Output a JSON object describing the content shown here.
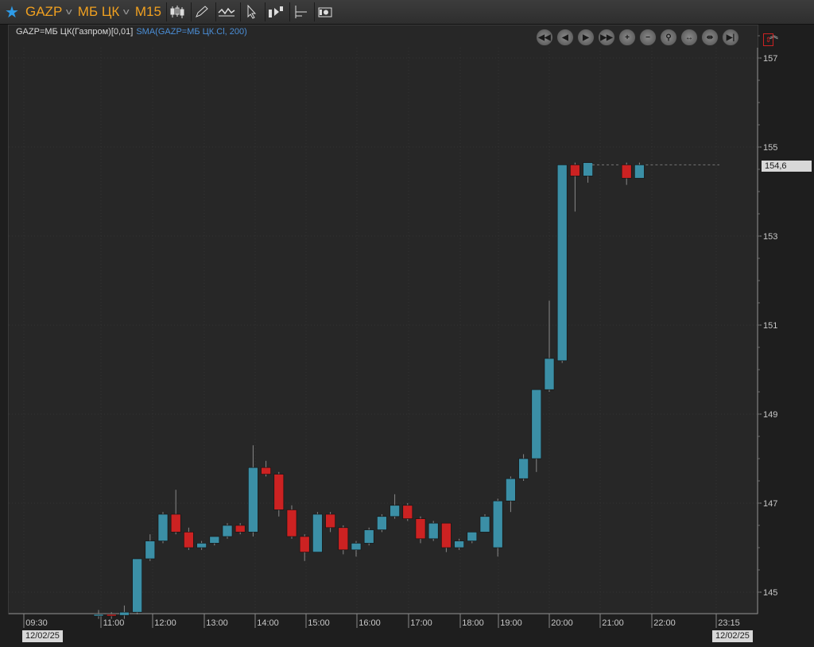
{
  "toolbar": {
    "symbol": "GAZP",
    "exchange": "МБ ЦК",
    "timeframe": "M15",
    "tools": [
      "candles-icon",
      "pencil-icon",
      "chart-style-icon",
      "cursor-icon",
      "trade-icon",
      "indicator-icon",
      "snapshot-icon"
    ]
  },
  "legend": {
    "series": "GAZP=МБ ЦК(Газпром)[0,01]",
    "sma": "SMA(GAZP=МБ ЦК.Cl, 200)"
  },
  "navigation": [
    "scroll-start-icon",
    "scroll-left-icon",
    "scroll-right-icon",
    "scroll-end-icon",
    "zoom-in-icon",
    "zoom-out-icon",
    "zoom-fit-icon",
    "expand-h-icon",
    "shrink-h-icon",
    "pause-icon"
  ],
  "dates": {
    "start": "12/02/25",
    "end": "12/02/25"
  },
  "last_price_label": "154,6",
  "colors": {
    "up": "#3b8fa6",
    "down": "#cc2222",
    "background": "#272727"
  },
  "chart_data": {
    "type": "candlestick",
    "ylim": [
      144.5,
      158
    ],
    "y_ticks": [
      157,
      155,
      153,
      151,
      149,
      147,
      145
    ],
    "x_tick_labels": [
      "09:30",
      "11:00",
      "12:00",
      "13:00",
      "14:00",
      "15:00",
      "16:00",
      "17:00",
      "18:00",
      "19:00",
      "20:00",
      "21:00",
      "22:00",
      "23:15"
    ],
    "candles": [
      {
        "o": 144.5,
        "h": 144.6,
        "l": 144.4,
        "c": 144.5
      },
      {
        "o": 144.5,
        "h": 144.55,
        "l": 144.4,
        "c": 144.48
      },
      {
        "o": 144.48,
        "h": 144.7,
        "l": 144.4,
        "c": 144.55
      },
      {
        "o": 144.55,
        "h": 145.75,
        "l": 144.5,
        "c": 145.75
      },
      {
        "o": 145.75,
        "h": 146.3,
        "l": 145.7,
        "c": 146.15
      },
      {
        "o": 146.15,
        "h": 146.8,
        "l": 146.1,
        "c": 146.75
      },
      {
        "o": 146.75,
        "h": 147.3,
        "l": 146.3,
        "c": 146.35
      },
      {
        "o": 146.35,
        "h": 146.45,
        "l": 145.95,
        "c": 146.0
      },
      {
        "o": 146.0,
        "h": 146.15,
        "l": 145.95,
        "c": 146.1
      },
      {
        "o": 146.1,
        "h": 146.25,
        "l": 146.05,
        "c": 146.25
      },
      {
        "o": 146.25,
        "h": 146.55,
        "l": 146.2,
        "c": 146.5
      },
      {
        "o": 146.5,
        "h": 146.55,
        "l": 146.3,
        "c": 146.35
      },
      {
        "o": 146.35,
        "h": 148.3,
        "l": 146.25,
        "c": 147.8
      },
      {
        "o": 147.8,
        "h": 147.95,
        "l": 147.6,
        "c": 147.65
      },
      {
        "o": 147.65,
        "h": 147.7,
        "l": 146.7,
        "c": 146.85
      },
      {
        "o": 146.85,
        "h": 146.95,
        "l": 146.2,
        "c": 146.25
      },
      {
        "o": 146.25,
        "h": 146.3,
        "l": 145.7,
        "c": 145.9
      },
      {
        "o": 145.9,
        "h": 146.8,
        "l": 145.9,
        "c": 146.75
      },
      {
        "o": 146.75,
        "h": 146.8,
        "l": 146.35,
        "c": 146.45
      },
      {
        "o": 146.45,
        "h": 146.5,
        "l": 145.85,
        "c": 145.95
      },
      {
        "o": 145.95,
        "h": 146.15,
        "l": 145.8,
        "c": 146.1
      },
      {
        "o": 146.1,
        "h": 146.45,
        "l": 146.05,
        "c": 146.4
      },
      {
        "o": 146.4,
        "h": 146.75,
        "l": 146.35,
        "c": 146.7
      },
      {
        "o": 146.7,
        "h": 147.2,
        "l": 146.65,
        "c": 146.95
      },
      {
        "o": 146.95,
        "h": 147.0,
        "l": 146.6,
        "c": 146.65
      },
      {
        "o": 146.65,
        "h": 146.7,
        "l": 146.1,
        "c": 146.2
      },
      {
        "o": 146.2,
        "h": 146.6,
        "l": 146.15,
        "c": 146.55
      },
      {
        "o": 146.55,
        "h": 146.55,
        "l": 145.9,
        "c": 146.0
      },
      {
        "o": 146.0,
        "h": 146.2,
        "l": 145.95,
        "c": 146.15
      },
      {
        "o": 146.15,
        "h": 146.35,
        "l": 146.1,
        "c": 146.35
      },
      {
        "o": 146.35,
        "h": 146.75,
        "l": 146.35,
        "c": 146.7
      },
      {
        "o": 146.0,
        "h": 147.1,
        "l": 145.8,
        "c": 147.05
      },
      {
        "o": 147.05,
        "h": 147.6,
        "l": 146.8,
        "c": 147.55
      },
      {
        "o": 147.55,
        "h": 148.1,
        "l": 147.5,
        "c": 148.0
      },
      {
        "o": 148.0,
        "h": 149.55,
        "l": 147.7,
        "c": 149.55
      },
      {
        "o": 149.55,
        "h": 151.55,
        "l": 149.5,
        "c": 150.25
      },
      {
        "o": 150.2,
        "h": 154.6,
        "l": 150.15,
        "c": 154.6
      },
      {
        "o": 154.6,
        "h": 154.65,
        "l": 153.55,
        "c": 154.35
      },
      {
        "o": 154.35,
        "h": 154.65,
        "l": 154.2,
        "c": 154.65
      },
      null,
      null,
      {
        "o": 154.6,
        "h": 154.65,
        "l": 154.15,
        "c": 154.3
      },
      {
        "o": 154.3,
        "h": 154.65,
        "l": 154.3,
        "c": 154.6
      }
    ]
  }
}
